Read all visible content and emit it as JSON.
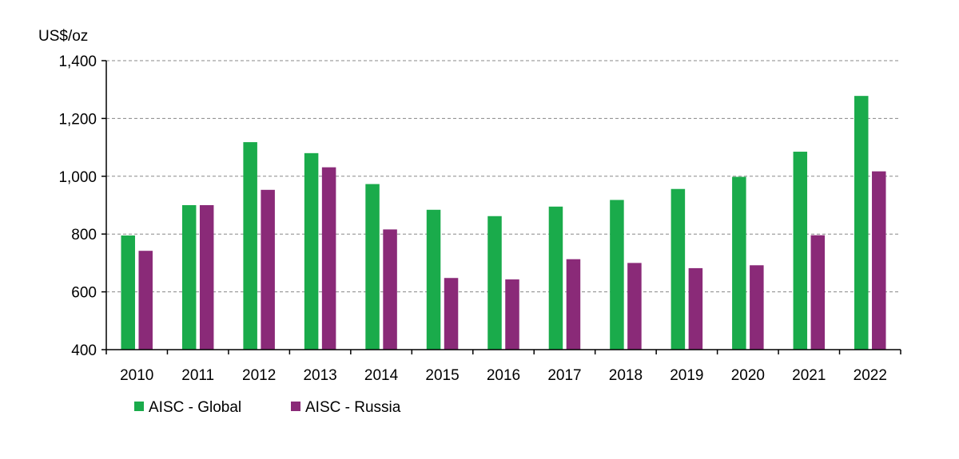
{
  "chart_data": {
    "type": "bar",
    "ylabel": "US$/oz",
    "ylim": [
      400,
      1400
    ],
    "yticks": [
      400,
      600,
      800,
      1000,
      1200,
      1400
    ],
    "ytick_labels": [
      "400",
      "600",
      "800",
      "1,000",
      "1,200",
      "1,400"
    ],
    "categories": [
      "2010",
      "2011",
      "2012",
      "2013",
      "2014",
      "2015",
      "2016",
      "2017",
      "2018",
      "2019",
      "2020",
      "2021",
      "2022"
    ],
    "series": [
      {
        "name": "AISC - Global",
        "color": "#1aab4b",
        "values": [
          795,
          900,
          1118,
          1080,
          973,
          884,
          862,
          895,
          918,
          956,
          998,
          1085,
          1278
        ]
      },
      {
        "name": "AISC - Russia",
        "color": "#8a2a78",
        "values": [
          742,
          900,
          953,
          1031,
          816,
          648,
          643,
          713,
          700,
          682,
          692,
          796,
          1017
        ]
      }
    ],
    "grid": true,
    "legend_position": "bottom-left"
  }
}
